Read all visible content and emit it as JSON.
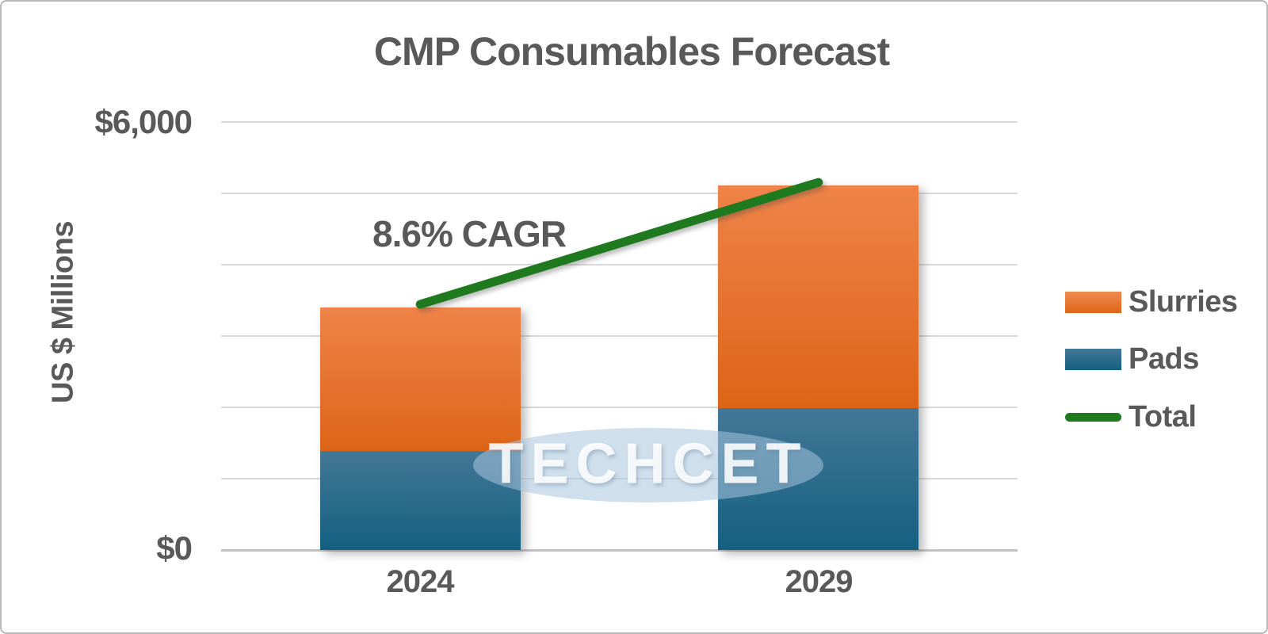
{
  "title": "CMP Consumables Forecast",
  "y_axis": {
    "label": "US $ Millions",
    "tick_labels": {
      "top": "$6,000",
      "bottom": "$0"
    }
  },
  "annotation": {
    "text": "8.6% CAGR"
  },
  "legend": {
    "items": [
      {
        "label": "Slurries",
        "swatch": "bar",
        "color": "#E8732C"
      },
      {
        "label": "Pads",
        "swatch": "bar",
        "color": "#2C6A8A"
      },
      {
        "label": "Total",
        "swatch": "line",
        "color": "#1F7A1F"
      }
    ]
  },
  "watermark": {
    "text": "TECHCET"
  },
  "chart_data": {
    "type": "bar",
    "stacked": true,
    "title": "CMP Consumables Forecast",
    "xlabel": "",
    "ylabel": "US $ Millions",
    "categories": [
      "2024",
      "2029"
    ],
    "series": [
      {
        "name": "Pads",
        "values": [
          1390,
          1990
        ],
        "color": "#2C6A8A"
      },
      {
        "name": "Slurries",
        "values": [
          2010,
          3120
        ],
        "color": "#E8732C"
      }
    ],
    "overlay_line": {
      "name": "Total",
      "type": "line",
      "values": [
        3400,
        5110
      ],
      "color": "#1F7A1F"
    },
    "annotations": [
      {
        "text": "8.6% CAGR",
        "attached_to": "Total line between 2024 and 2029"
      }
    ],
    "ylim": [
      0,
      6000
    ],
    "gridline_step": 1000,
    "grid": true,
    "legend_position": "right-middle",
    "visible_ytick_labels": [
      "$6,000",
      "$0"
    ],
    "units": "US $ Millions",
    "watermark": "TECHCET"
  }
}
